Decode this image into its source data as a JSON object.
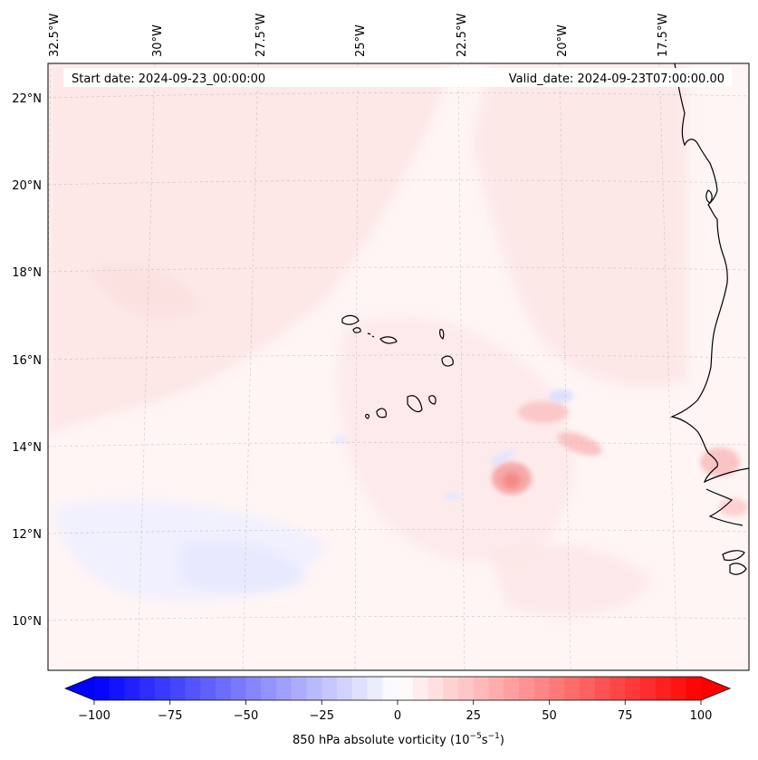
{
  "header": {
    "start_date": "Start date: 2024-09-23_00:00:00",
    "valid_date": "Valid_date: 2024-09-23T07:00:00.00"
  },
  "lon_labels": [
    {
      "text": "32.5°W",
      "lon": -32.5
    },
    {
      "text": "30°W",
      "lon": -30
    },
    {
      "text": "27.5°W",
      "lon": -27.5
    },
    {
      "text": "25°W",
      "lon": -25
    },
    {
      "text": "22.5°W",
      "lon": -22.5
    },
    {
      "text": "20°W",
      "lon": -20
    },
    {
      "text": "17.5°W",
      "lon": -17.5
    }
  ],
  "lat_labels": [
    {
      "text": "22°N",
      "lat": 22
    },
    {
      "text": "20°N",
      "lat": 20
    },
    {
      "text": "18°N",
      "lat": 18
    },
    {
      "text": "16°N",
      "lat": 16
    },
    {
      "text": "14°N",
      "lat": 14
    },
    {
      "text": "12°N",
      "lat": 12
    },
    {
      "text": "10°N",
      "lat": 10
    }
  ],
  "colorbar": {
    "label": "850 hPa absolute vorticity (10",
    "label_exp1": "−5",
    "label_mid": "s",
    "label_exp2": "−1",
    "label_end": ")",
    "min": -100,
    "max": 100,
    "low_color": "#0000ff",
    "mid_color": "#ffffff",
    "high_color": "#ff0000",
    "ticks": [
      {
        "text": "−100",
        "value": -100
      },
      {
        "text": "−75",
        "value": -75
      },
      {
        "text": "−50",
        "value": -50
      },
      {
        "text": "−25",
        "value": -25
      },
      {
        "text": "0",
        "value": 0
      },
      {
        "text": "25",
        "value": 25
      },
      {
        "text": "50",
        "value": 50
      },
      {
        "text": "75",
        "value": 75
      },
      {
        "text": "100",
        "value": 100
      }
    ]
  }
}
